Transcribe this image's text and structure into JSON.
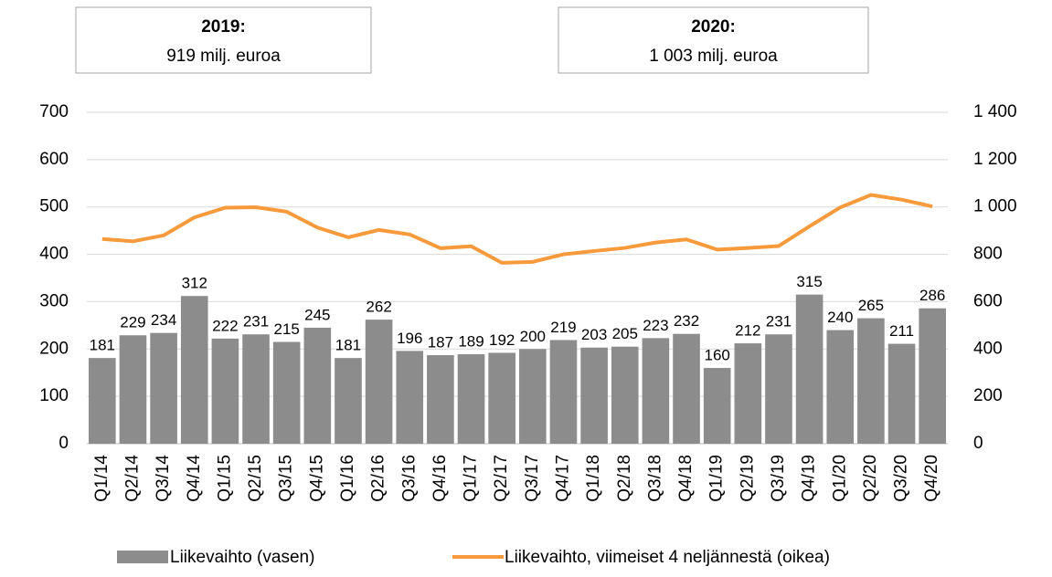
{
  "chart_data": {
    "type": "bar",
    "annotations": [
      {
        "title": "2019:",
        "text": "919 milj. euroa"
      },
      {
        "title": "2020:",
        "text": "1 003 milj. euroa"
      }
    ],
    "categories": [
      "Q1/14",
      "Q2/14",
      "Q3/14",
      "Q4/14",
      "Q1/15",
      "Q2/15",
      "Q3/15",
      "Q4/15",
      "Q1/16",
      "Q2/16",
      "Q3/16",
      "Q4/16",
      "Q1/17",
      "Q2/17",
      "Q3/17",
      "Q4/17",
      "Q1/18",
      "Q2/18",
      "Q3/18",
      "Q4/18",
      "Q1/19",
      "Q2/19",
      "Q3/19",
      "Q4/19",
      "Q1/20",
      "Q2/20",
      "Q3/20",
      "Q4/20"
    ],
    "series": [
      {
        "name": "Liikevaihto (vasen)",
        "color": "#8c8c8c",
        "type": "bar",
        "values": [
          181,
          229,
          234,
          312,
          222,
          231,
          215,
          245,
          181,
          262,
          196,
          187,
          189,
          192,
          200,
          219,
          203,
          205,
          223,
          232,
          160,
          212,
          231,
          315,
          240,
          265,
          211,
          286
        ]
      },
      {
        "name": "Liikevaihto, viimeiset 4 neljännestä (oikea)",
        "color": "#f79a3c",
        "type": "line",
        "axis": "y2",
        "values": [
          865,
          855,
          880,
          956,
          997,
          999,
          980,
          913,
          872,
          903,
          884,
          826,
          834,
          764,
          768,
          800,
          814,
          827,
          850,
          863,
          820,
          827,
          835,
          918,
          998,
          1051,
          1031,
          1002
        ]
      }
    ],
    "ylim": [
      0,
      700
    ],
    "yticks": [
      0,
      100,
      200,
      300,
      400,
      500,
      600,
      700
    ],
    "y2lim": [
      0,
      1400
    ],
    "y2ticks": [
      0,
      200,
      400,
      600,
      800,
      {
        "value": 1000,
        "label": "1 000"
      },
      {
        "value": 1200,
        "label": "1 200"
      },
      {
        "value": 1400,
        "label": "1 400"
      }
    ],
    "grid": true,
    "legend": "bottom"
  }
}
